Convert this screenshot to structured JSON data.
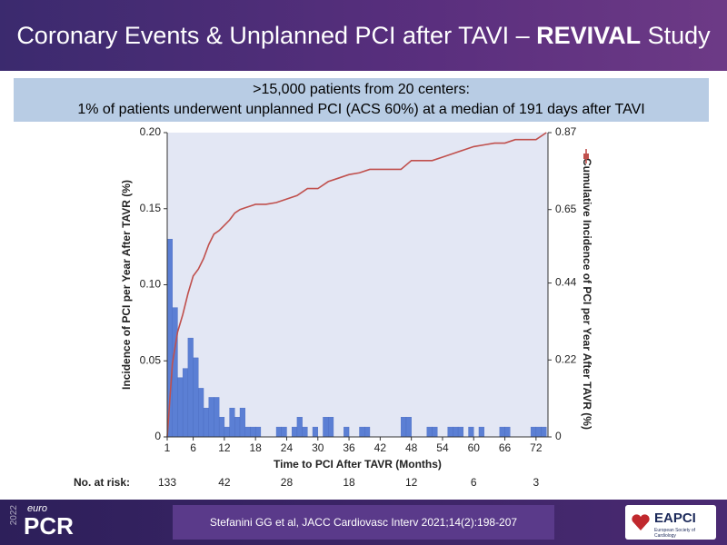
{
  "header": {
    "title_parts": [
      "Coronary Events & Unplanned PCI after TAVI – ",
      "REVIVAL",
      " Study"
    ]
  },
  "summary": {
    "lines": [
      ">15,000 patients from 20 centers:",
      "1% of patients underwent unplanned PCI (ACS 60%) at a median of 191 days after TAVI"
    ]
  },
  "footer": {
    "citation": "Stefanini GG et al, JACC Cardiovasc Interv 2021;14(2):198-207",
    "logo_small": "euro",
    "logo_main": "PCR",
    "logo_year": "2022",
    "partner": "EAPCI",
    "partner_sub": "European Society of Cardiology"
  },
  "chart_data": {
    "type": "histogram",
    "xlabel": "Time to PCI After TAVR (Months)",
    "ylabel": "Incidence of PCI per Year After TAVR (%)",
    "y2label": "Cumulative Incidence of PCI per Year After TAVR (%)",
    "xlim": [
      1,
      74.3
    ],
    "xticks": [
      1,
      6,
      12,
      18,
      24,
      30,
      36,
      42,
      48,
      54,
      60,
      66,
      72
    ],
    "ylim": [
      0,
      0.2
    ],
    "yticks": [
      0,
      0.05,
      {
        "value": 0.1,
        "label": "0.10"
      },
      0.15,
      {
        "value": 0.2,
        "label": "0.20"
      }
    ],
    "y2lim": [
      0,
      0.87
    ],
    "y2ticks": [
      0,
      0.22,
      0.44,
      0.65,
      0.87
    ],
    "bins": [
      1,
      2,
      3,
      4,
      5,
      6,
      7,
      8,
      9,
      10,
      11,
      12,
      13,
      14,
      15,
      16,
      17,
      18,
      19,
      20,
      21,
      22,
      23,
      24,
      25,
      26,
      27,
      28,
      29,
      30,
      31,
      32,
      33,
      34,
      35,
      36,
      37,
      38,
      39,
      40,
      41,
      42,
      43,
      44,
      45,
      46,
      47,
      48,
      49,
      50,
      51,
      52,
      53,
      54,
      55,
      56,
      57,
      58,
      59,
      60,
      61,
      62,
      63,
      64,
      65,
      66,
      67,
      68,
      69,
      70,
      71,
      72,
      73,
      74
    ],
    "counts": [
      0.13,
      0.085,
      0.039,
      0.045,
      0.065,
      0.052,
      0.032,
      0.019,
      0.026,
      0.026,
      0.013,
      0.0065,
      0.019,
      0.013,
      0.019,
      0.0065,
      0.0065,
      0.0065,
      0,
      0,
      0,
      0.0065,
      0.0065,
      0,
      0.0065,
      0.013,
      0.0065,
      0,
      0.0065,
      0,
      0.013,
      0.013,
      0,
      0,
      0.0065,
      0,
      0,
      0.0065,
      0.0065,
      0,
      0,
      0,
      0,
      0,
      0,
      0.013,
      0.013,
      0,
      0,
      0,
      0.0065,
      0.0065,
      0,
      0,
      0.0065,
      0.0065,
      0.0065,
      0,
      0.0065,
      0,
      0.0065,
      0,
      0,
      0,
      0.0065,
      0.0065,
      0,
      0,
      0,
      0,
      0.0065,
      0.0065,
      0.0065
    ],
    "color": "#5b7fd4",
    "series": [
      {
        "axis": "y2",
        "color": "#c0504d",
        "x": [
          1,
          2,
          3,
          4,
          5,
          6,
          7,
          8,
          9,
          10,
          11,
          12,
          13,
          14,
          15,
          16,
          17,
          18,
          20,
          22,
          24,
          26,
          28,
          30,
          32,
          34,
          36,
          38,
          40,
          44,
          46,
          48,
          52,
          54,
          56,
          58,
          60,
          62,
          64,
          66,
          68,
          72,
          74
        ],
        "values": [
          0,
          0.21,
          0.3,
          0.35,
          0.41,
          0.46,
          0.48,
          0.51,
          0.55,
          0.58,
          0.59,
          0.605,
          0.62,
          0.64,
          0.65,
          0.655,
          0.66,
          0.665,
          0.665,
          0.67,
          0.68,
          0.69,
          0.71,
          0.71,
          0.73,
          0.74,
          0.75,
          0.755,
          0.765,
          0.765,
          0.765,
          0.79,
          0.79,
          0.8,
          0.81,
          0.82,
          0.83,
          0.835,
          0.84,
          0.84,
          0.85,
          0.85,
          0.87
        ]
      }
    ],
    "at_risk": {
      "label": "No. at risk:",
      "x": [
        1,
        12,
        24,
        36,
        48,
        60,
        72
      ],
      "values": [
        133,
        42,
        28,
        18,
        12,
        6,
        3
      ]
    }
  }
}
